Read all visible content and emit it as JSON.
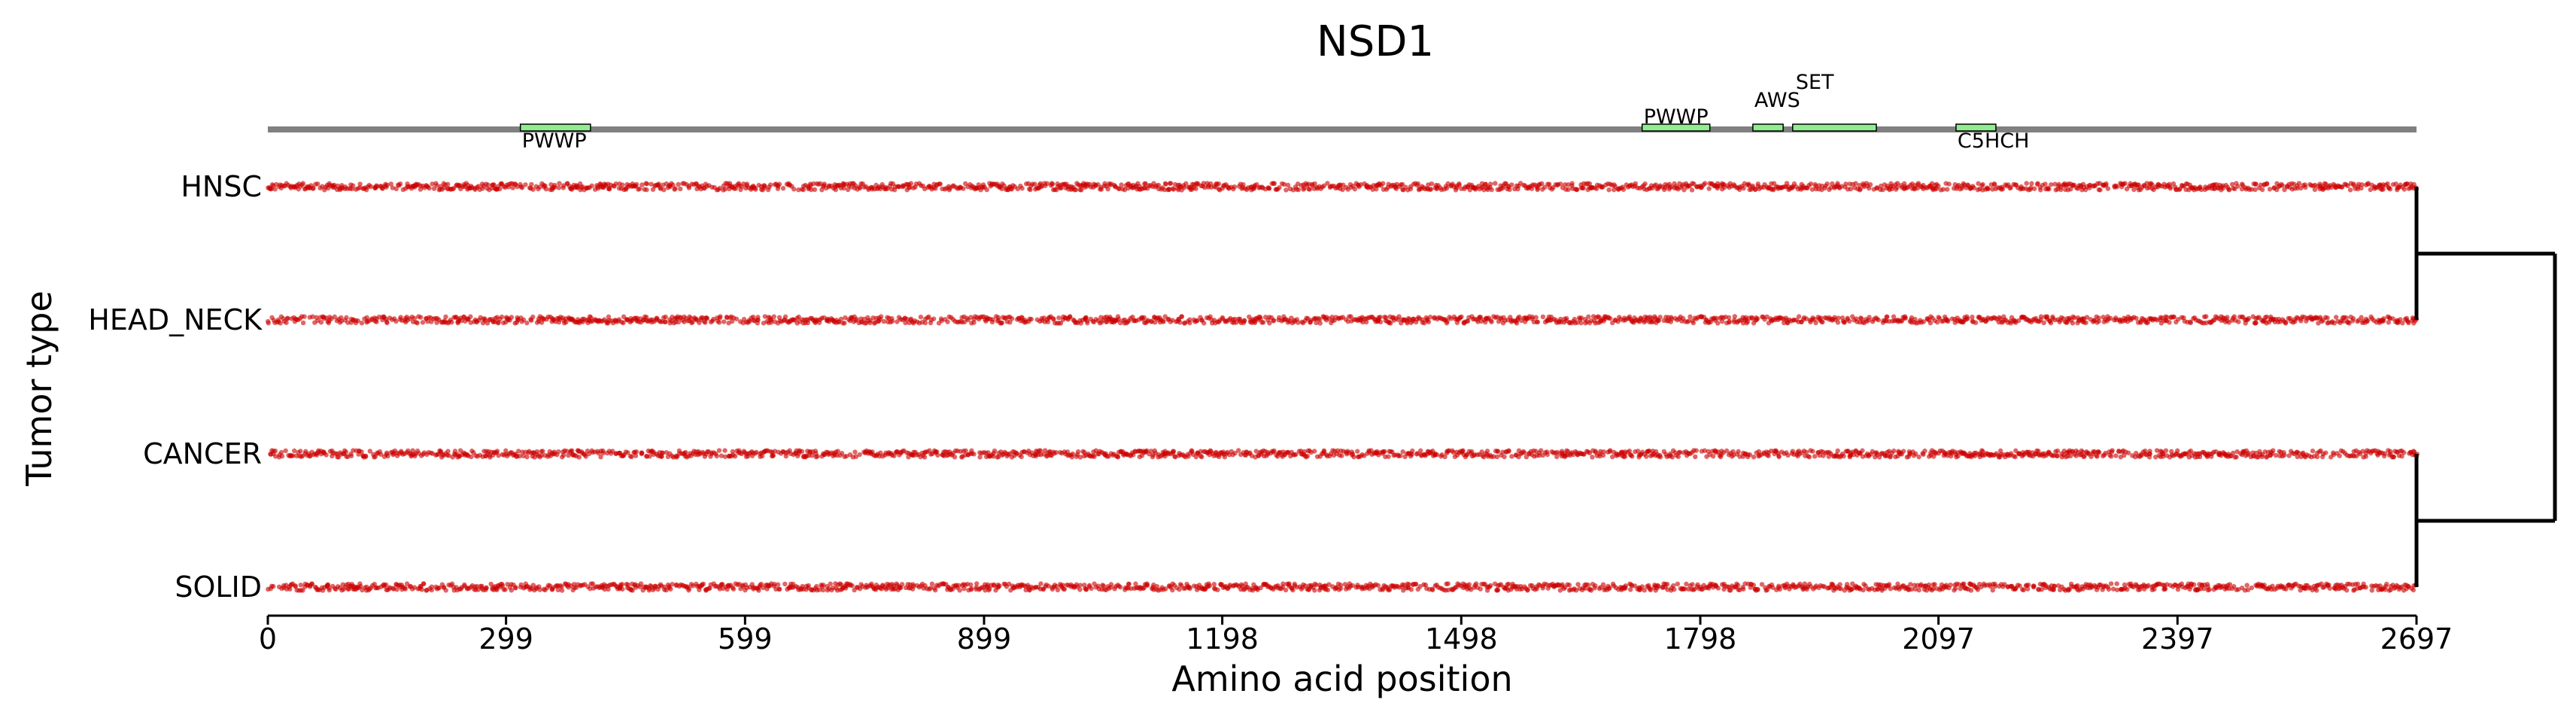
{
  "chart_data": {
    "type": "scatter",
    "title": "NSD1",
    "xlabel": "Amino acid position",
    "ylabel": "Tumor type",
    "xlim": [
      0,
      2697
    ],
    "xticks": [
      "0",
      "299",
      "599",
      "899",
      "1198",
      "1498",
      "1798",
      "2097",
      "2397",
      "2697"
    ],
    "xtick_values": [
      0,
      299,
      599,
      899,
      1198,
      1498,
      1798,
      2097,
      2397,
      2697
    ],
    "categories": [
      "HNSC",
      "HEAD_NECK",
      "CANCER",
      "SOLID"
    ],
    "point_color": "#cc0000",
    "domains": [
      {
        "name": "PWWP",
        "start": 317,
        "end": 405,
        "label_position": "below"
      },
      {
        "name": "PWWP",
        "start": 1725,
        "end": 1810,
        "label_position": "above"
      },
      {
        "name": "AWS",
        "start": 1864,
        "end": 1902,
        "label_position": "above"
      },
      {
        "name": "SET",
        "start": 1914,
        "end": 2019,
        "label_position": "above"
      },
      {
        "name": "C5HCH",
        "start": 2119,
        "end": 2169,
        "label_position": "below"
      }
    ],
    "domain_color": "#90ee90",
    "dendrogram": {
      "pairs": [
        [
          "HNSC",
          "HEAD_NECK"
        ],
        [
          "CANCER",
          "SOLID"
        ]
      ],
      "root_joins": "both pairs"
    },
    "grid": false,
    "legend": "none"
  }
}
